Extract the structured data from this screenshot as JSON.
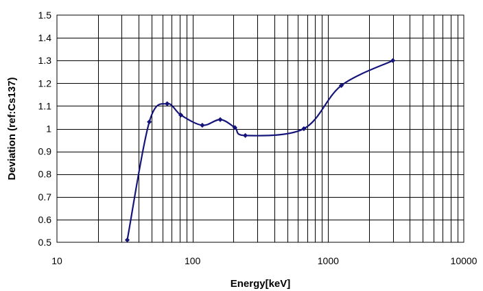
{
  "chart_data": {
    "type": "line",
    "title": "",
    "xlabel": "Energy[keV]",
    "ylabel": "Deviation (ref:Cs137)",
    "x_scale": "log",
    "xlim": [
      10,
      10000
    ],
    "ylim": [
      0.5,
      1.5
    ],
    "grid": true,
    "x_ticks": [
      10,
      100,
      1000,
      10000
    ],
    "x_tick_labels": [
      "10",
      "100",
      "1000",
      "10000"
    ],
    "y_ticks": [
      0.5,
      0.6,
      0.7,
      0.8,
      0.9,
      1.0,
      1.1,
      1.2,
      1.3,
      1.4,
      1.5
    ],
    "y_tick_labels": [
      "0.5",
      "0.6",
      "0.7",
      "0.8",
      "0.9",
      "1",
      "1.1",
      "1.2",
      "1.3",
      "1.4",
      "1.5"
    ],
    "line_color": "#14147a",
    "series": [
      {
        "x": [
          33,
          48,
          65,
          82,
          118,
          160,
          205,
          245,
          662,
          1250,
          3000
        ],
        "y": [
          0.51,
          1.03,
          1.11,
          1.06,
          1.015,
          1.04,
          1.005,
          0.97,
          1.0,
          1.19,
          1.3
        ]
      }
    ]
  }
}
